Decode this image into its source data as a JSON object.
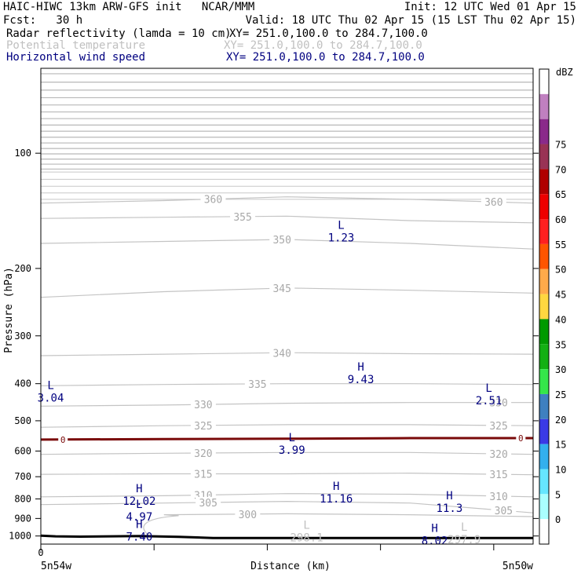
{
  "header": {
    "line1_left": "HAIC-HIWC 13km ARW-GFS init   NCAR/MMM",
    "line1_right": "Init: 12 UTC Wed 01 Apr 15",
    "line2_left": "Fcst:   30 h",
    "line2_right": "Valid: 18 UTC Thu 02 Apr 15 (15 LST Thu 02 Apr 15)",
    "fields": [
      {
        "name": "Radar reflectivity (lamda = 10 cm)",
        "xy": "XY= 251.0,100.0 to 284.7,100.0",
        "color": "#000000"
      },
      {
        "name": "Potential temperature",
        "xy": "XY= 251.0,100.0 to 284.7,100.0",
        "color": "#c0c0c0"
      },
      {
        "name": "Horizontal wind speed",
        "xy": "XY= 251.0,100.0 to 284.7,100.0",
        "color": "#000080"
      }
    ]
  },
  "chart_data": {
    "type": "cross-section",
    "ylabel": "Pressure (hPa)",
    "xlabel": "Distance (km)",
    "y_scale": "log",
    "ylim": [
      1050,
      60
    ],
    "yticks": [
      100,
      200,
      300,
      400,
      500,
      600,
      700,
      800,
      900,
      1000
    ],
    "x_start_label": "0",
    "x_left_label": "5n54w",
    "x_right_label": "5n50w",
    "xlim": [
      0,
      1
    ],
    "theta_contours": [
      {
        "value": 360,
        "p": [
          135,
          133,
          130,
          132,
          135
        ],
        "labels": [
          {
            "x": 0.35,
            "text": "360"
          },
          {
            "x": 0.92,
            "text": "360"
          }
        ]
      },
      {
        "value": 355,
        "p": [
          148,
          147,
          146,
          150,
          152
        ],
        "labels": [
          {
            "x": 0.41,
            "text": "355"
          }
        ]
      },
      {
        "value": 350,
        "p": [
          172,
          170,
          168,
          172,
          178
        ],
        "labels": [
          {
            "x": 0.49,
            "text": "350"
          }
        ]
      },
      {
        "value": 345,
        "p": [
          238,
          230,
          225,
          228,
          232
        ],
        "labels": [
          {
            "x": 0.49,
            "text": "345"
          }
        ]
      },
      {
        "value": 340,
        "p": [
          338,
          335,
          332,
          334,
          335
        ],
        "labels": [
          {
            "x": 0.49,
            "text": "340"
          }
        ]
      },
      {
        "value": 335,
        "p": [
          405,
          402,
          400,
          400,
          402
        ],
        "labels": [
          {
            "x": 0.44,
            "text": "335"
          }
        ]
      },
      {
        "value": 330,
        "p": [
          458,
          455,
          450,
          448,
          448
        ],
        "labels": [
          {
            "x": 0.33,
            "text": "330"
          },
          {
            "x": 0.93,
            "text": "330"
          }
        ]
      },
      {
        "value": 325,
        "p": [
          520,
          515,
          512,
          512,
          515
        ],
        "labels": [
          {
            "x": 0.33,
            "text": "325"
          },
          {
            "x": 0.93,
            "text": "325"
          }
        ]
      },
      {
        "value": 320,
        "p": [
          612,
          608,
          605,
          605,
          612
        ],
        "labels": [
          {
            "x": 0.33,
            "text": "320"
          },
          {
            "x": 0.93,
            "text": "320"
          }
        ]
      },
      {
        "value": 315,
        "p": [
          690,
          688,
          688,
          685,
          692
        ],
        "labels": [
          {
            "x": 0.33,
            "text": "315"
          },
          {
            "x": 0.93,
            "text": "315"
          }
        ]
      },
      {
        "value": 310,
        "p": [
          790,
          785,
          775,
          778,
          790
        ],
        "labels": [
          {
            "x": 0.33,
            "text": "310"
          },
          {
            "x": 0.93,
            "text": "310"
          }
        ]
      },
      {
        "value": 305,
        "p": [
          828,
          820,
          812,
          820,
          870
        ],
        "labels": [
          {
            "x": 0.34,
            "text": "305"
          },
          {
            "x": 0.94,
            "text": "305"
          }
        ]
      },
      {
        "value": 300,
        "p": [
          null,
          880,
          875,
          880,
          890
        ],
        "labels": [
          {
            "x": 0.42,
            "text": "300"
          }
        ]
      }
    ],
    "dbz_zero_contour": {
      "label": "0",
      "p": [
        560,
        558,
        557,
        555,
        555
      ]
    },
    "terrain": {
      "x": [
        0,
        0.03,
        0.08,
        0.2,
        0.28,
        0.35,
        0.6,
        0.8,
        1.0
      ],
      "p": [
        998,
        1002,
        1004,
        1000,
        1005,
        1012,
        1012,
        1012,
        1012
      ]
    },
    "hl_markers": [
      {
        "type": "L",
        "value": "1.23",
        "x": 0.61,
        "p": 162,
        "color": "#000080"
      },
      {
        "type": "H",
        "value": "9.43",
        "x": 0.65,
        "p": 380,
        "color": "#000080"
      },
      {
        "type": "L",
        "value": "3.04",
        "x": 0.02,
        "p": 425,
        "color": "#000080"
      },
      {
        "type": "L",
        "value": "2.51",
        "x": 0.91,
        "p": 432,
        "color": "#000080"
      },
      {
        "type": "L",
        "value": "3.99",
        "x": 0.51,
        "p": 582,
        "color": "#000080"
      },
      {
        "type": "H",
        "value": "12.02",
        "x": 0.2,
        "p": 790,
        "color": "#000080"
      },
      {
        "type": "H",
        "value": "11.16",
        "x": 0.6,
        "p": 780,
        "color": "#000080"
      },
      {
        "type": "H",
        "value": "11.3",
        "x": 0.83,
        "p": 825,
        "color": "#000080"
      },
      {
        "type": "L",
        "value": "4.97",
        "x": 0.2,
        "p": 870,
        "color": "#000080"
      },
      {
        "type": "H",
        "value": "7.40",
        "x": 0.2,
        "p": 980,
        "color": "#000080"
      },
      {
        "type": "L",
        "value": "298.1",
        "x": 0.54,
        "p": 985,
        "color": "#c0c0c0"
      },
      {
        "type": "H",
        "value": "8.02",
        "x": 0.8,
        "p": 1005,
        "color": "#000080"
      },
      {
        "type": "L",
        "value": "297.9",
        "x": 0.86,
        "p": 998,
        "color": "#c0c0c0"
      }
    ],
    "colorbar": {
      "unit": "dBZ",
      "levels": [
        0,
        5,
        10,
        15,
        20,
        25,
        30,
        35,
        40,
        45,
        50,
        55,
        60,
        65,
        70,
        75
      ],
      "colors": [
        "#ffffff",
        "#aaffff",
        "#66e6ff",
        "#33b0ee",
        "#3a3ae6",
        "#3e80c0",
        "#35e64a",
        "#13b013",
        "#009a00",
        "#ffd740",
        "#ffaa4a",
        "#ff5500",
        "#ff2020",
        "#ee0000",
        "#b00000",
        "#993355",
        "#8a2a8a",
        "#c080c0",
        "#ffffff"
      ]
    }
  }
}
